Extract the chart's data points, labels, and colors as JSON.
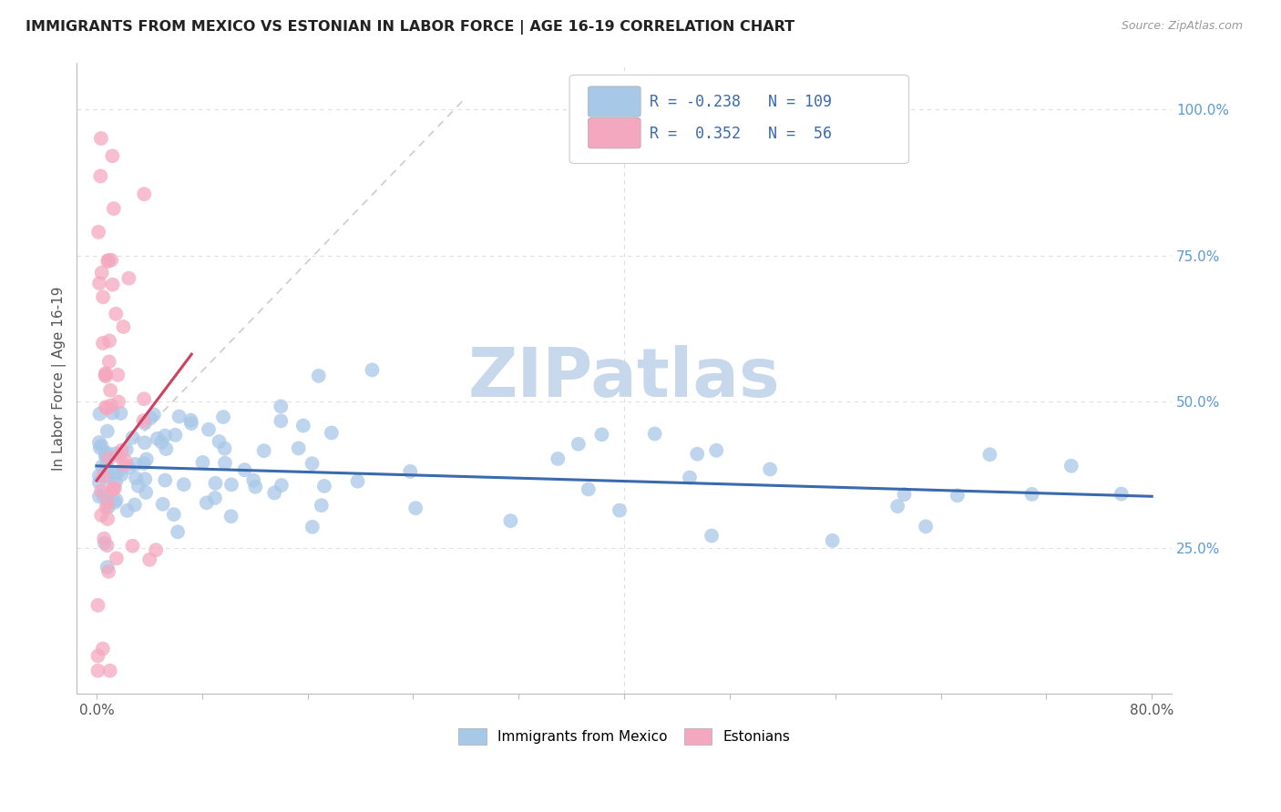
{
  "title": "IMMIGRANTS FROM MEXICO VS ESTONIAN IN LABOR FORCE | AGE 16-19 CORRELATION CHART",
  "source": "Source: ZipAtlas.com",
  "ylabel": "In Labor Force | Age 16-19",
  "blue_color": "#a8c8e8",
  "pink_color": "#f4a8c0",
  "blue_line_color": "#3a6aad",
  "pink_line_color": "#d04060",
  "ref_line_color": "#cccccc",
  "grid_color": "#e0e0e0",
  "watermark": "ZIPatlas",
  "watermark_color": "#c8d8ec",
  "legend_R_blue": "-0.238",
  "legend_N_blue": "109",
  "legend_R_pink": "0.352",
  "legend_N_pink": "56",
  "blue_scatter_seed": 42,
  "pink_scatter_seed": 7
}
